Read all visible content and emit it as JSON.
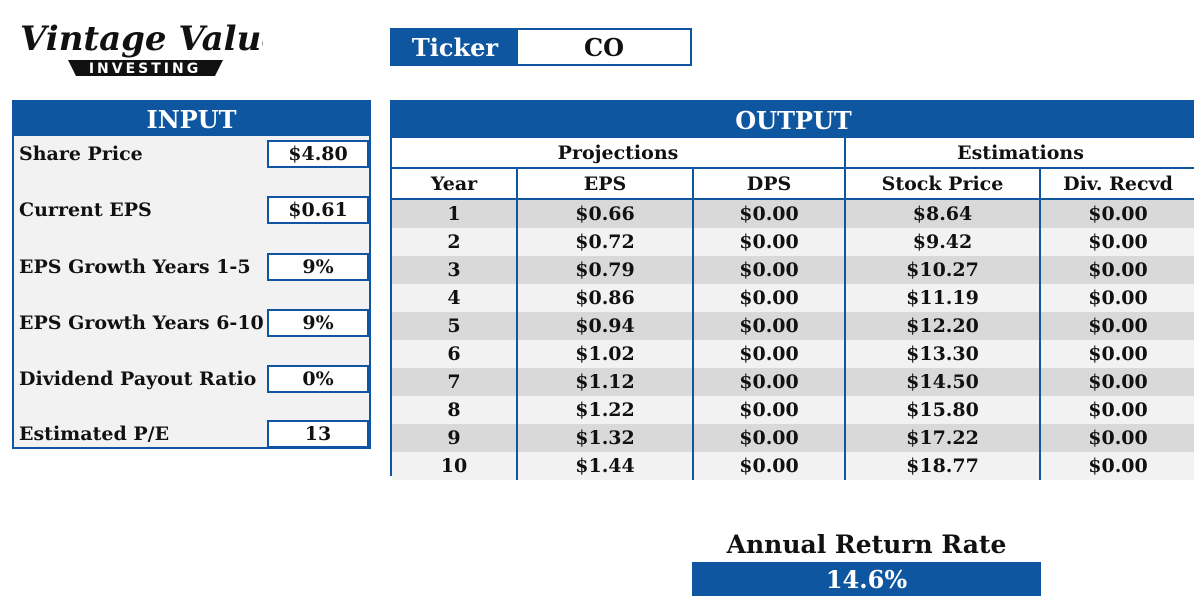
{
  "logo": {
    "line1": "Vintage Value",
    "line2": "INVESTING"
  },
  "ticker": {
    "label": "Ticker",
    "value": "CO"
  },
  "input": {
    "title": "INPUT",
    "rows": [
      {
        "label": "Share Price",
        "value": "$4.80"
      },
      {
        "label": "Current EPS",
        "value": "$0.61"
      },
      {
        "label": "EPS Growth Years 1-5",
        "value": "9%"
      },
      {
        "label": "EPS Growth Years 6-10",
        "value": "9%"
      },
      {
        "label": "Dividend Payout Ratio",
        "value": "0%"
      },
      {
        "label": "Estimated P/E",
        "value": "13"
      }
    ]
  },
  "output": {
    "title": "OUTPUT",
    "groups": [
      "Projections",
      "Estimations"
    ],
    "columns": [
      "Year",
      "EPS",
      "DPS",
      "Stock Price",
      "Div. Recvd"
    ],
    "rows": [
      [
        "1",
        "$0.66",
        "$0.00",
        "$8.64",
        "$0.00"
      ],
      [
        "2",
        "$0.72",
        "$0.00",
        "$9.42",
        "$0.00"
      ],
      [
        "3",
        "$0.79",
        "$0.00",
        "$10.27",
        "$0.00"
      ],
      [
        "4",
        "$0.86",
        "$0.00",
        "$11.19",
        "$0.00"
      ],
      [
        "5",
        "$0.94",
        "$0.00",
        "$12.20",
        "$0.00"
      ],
      [
        "6",
        "$1.02",
        "$0.00",
        "$13.30",
        "$0.00"
      ],
      [
        "7",
        "$1.12",
        "$0.00",
        "$14.50",
        "$0.00"
      ],
      [
        "8",
        "$1.22",
        "$0.00",
        "$15.80",
        "$0.00"
      ],
      [
        "9",
        "$1.32",
        "$0.00",
        "$17.22",
        "$0.00"
      ],
      [
        "10",
        "$1.44",
        "$0.00",
        "$18.77",
        "$0.00"
      ]
    ]
  },
  "annual_return": {
    "label": "Annual Return Rate",
    "value": "14.6%"
  },
  "colors": {
    "accent": "#0f56a0",
    "row_dark": "#d9d9d9",
    "row_light": "#f2f2f2"
  }
}
